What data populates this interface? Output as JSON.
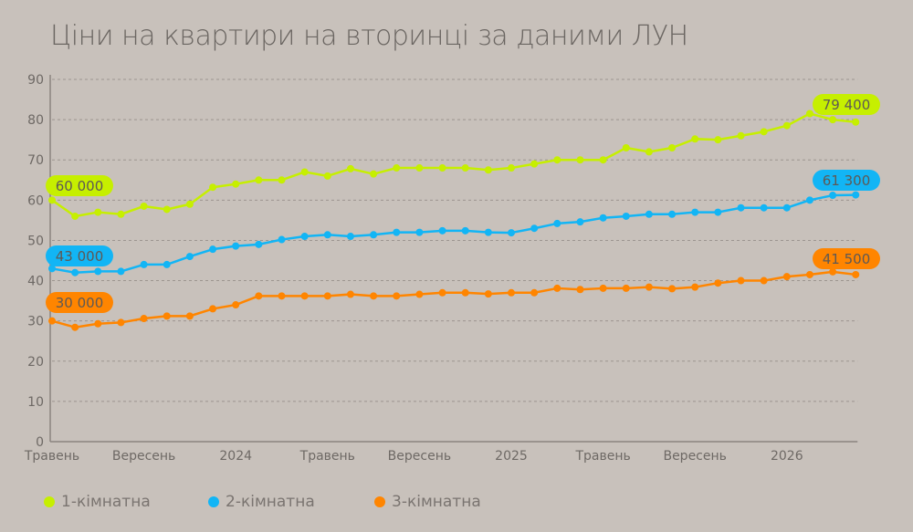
{
  "chart_data": {
    "type": "line",
    "title": "Ціни на квартири на вторинці за даними ЛУН",
    "xlabel": "",
    "ylabel": "",
    "ylim": [
      0,
      90
    ],
    "yticks": [
      0,
      10,
      20,
      30,
      40,
      50,
      60,
      70,
      80,
      90
    ],
    "grid": true,
    "legend_position": "bottom-left",
    "x_tick_labels": [
      {
        "index": 0,
        "label": "Травень"
      },
      {
        "index": 4,
        "label": "Вересень"
      },
      {
        "index": 8,
        "label": "2024"
      },
      {
        "index": 12,
        "label": "Травень"
      },
      {
        "index": 16,
        "label": "Вересень"
      },
      {
        "index": 20,
        "label": "2025"
      },
      {
        "index": 24,
        "label": "Травень"
      },
      {
        "index": 28,
        "label": "Вересень"
      },
      {
        "index": 32,
        "label": "2026"
      }
    ],
    "series": [
      {
        "name": "1-кімнатна",
        "color": "#c6ef00",
        "start_label": "60 000",
        "end_label": "79 400",
        "values": [
          60,
          56,
          57,
          56.5,
          58.5,
          57.7,
          59,
          63.2,
          64,
          65,
          65,
          67,
          66,
          67.8,
          66.5,
          68,
          68,
          68,
          68,
          67.5,
          68,
          69,
          70,
          70,
          70,
          73,
          72,
          73,
          75.2,
          75,
          76,
          77,
          78.5,
          81.5,
          80,
          79.4
        ]
      },
      {
        "name": "2-кімнатна",
        "color": "#12b5f5",
        "start_label": "43 000",
        "end_label": "61 300",
        "values": [
          43,
          42,
          42.3,
          42.3,
          44,
          44,
          46,
          47.8,
          48.6,
          49,
          50.2,
          51,
          51.4,
          51,
          51.4,
          52,
          52,
          52.4,
          52.4,
          52,
          51.9,
          53,
          54.2,
          54.6,
          55.6,
          56,
          56.5,
          56.5,
          57,
          57,
          58.1,
          58.1,
          58.1,
          60,
          61.2,
          61.3
        ]
      },
      {
        "name": "3-кімнатна",
        "color": "#ff8500",
        "start_label": "30 000",
        "end_label": "41 500",
        "values": [
          30,
          28.4,
          29.3,
          29.6,
          30.6,
          31.2,
          31.2,
          33,
          34,
          36.2,
          36.2,
          36.2,
          36.2,
          36.6,
          36.2,
          36.2,
          36.6,
          37,
          37,
          36.7,
          37,
          37,
          38.1,
          37.8,
          38.1,
          38.1,
          38.4,
          38,
          38.4,
          39.4,
          40,
          40,
          41,
          41.5,
          42.2,
          41.5
        ]
      }
    ]
  }
}
